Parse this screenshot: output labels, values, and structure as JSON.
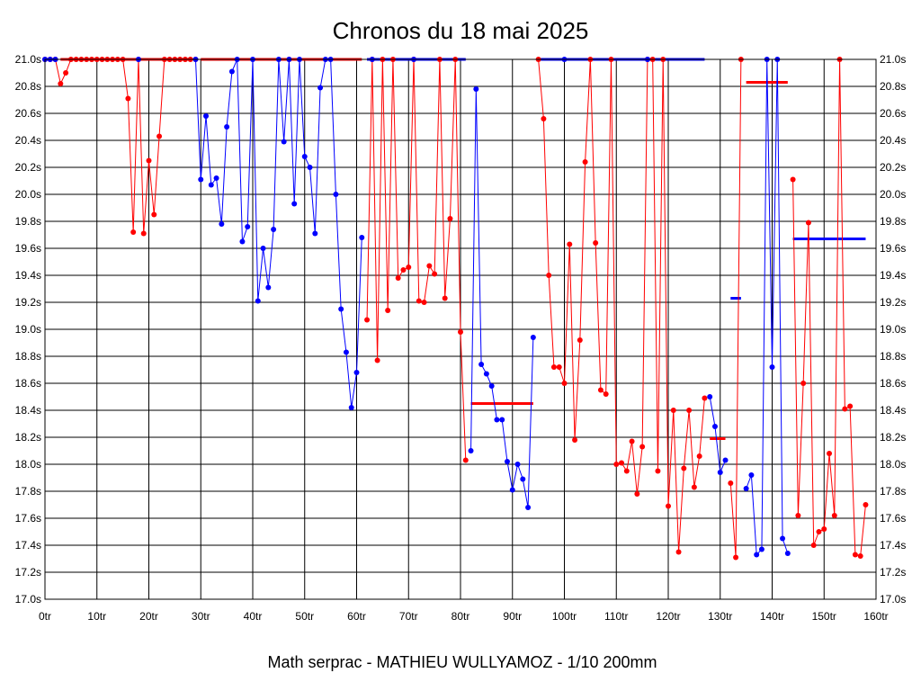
{
  "chart_data": {
    "type": "line",
    "title": "Chronos du 18 mai 2025",
    "caption": "Math serprac - MATHIEU WULLYAMOZ - 1/10 200mm",
    "xlabel": "",
    "ylabel": "",
    "xlim": [
      0,
      160
    ],
    "ylim": [
      17.0,
      21.0
    ],
    "grid": true,
    "x_ticks": [
      "0tr",
      "10tr",
      "20tr",
      "30tr",
      "40tr",
      "50tr",
      "60tr",
      "70tr",
      "80tr",
      "90tr",
      "100tr",
      "110tr",
      "120tr",
      "130tr",
      "140tr",
      "150tr",
      "160tr"
    ],
    "y_ticks": [
      "17.0s",
      "17.2s",
      "17.4s",
      "17.6s",
      "17.8s",
      "18.0s",
      "18.2s",
      "18.4s",
      "18.6s",
      "18.8s",
      "19.0s",
      "19.2s",
      "19.4s",
      "19.6s",
      "19.8s",
      "20.0s",
      "20.2s",
      "20.4s",
      "20.6s",
      "20.8s",
      "21.0s"
    ],
    "series": [
      {
        "name": "rouge",
        "color": "#ff0000",
        "marker_color": "#ff0000",
        "points": [
          [
            0,
            21.0
          ],
          [
            1,
            21.0
          ],
          [
            2,
            21.0
          ],
          [
            3,
            20.82
          ],
          [
            4,
            20.9
          ],
          [
            5,
            21.0
          ],
          [
            6,
            21.0
          ],
          [
            7,
            21.0
          ],
          [
            8,
            21.0
          ],
          [
            9,
            21.0
          ],
          [
            10,
            21.0
          ],
          [
            11,
            21.0
          ],
          [
            12,
            21.0
          ],
          [
            13,
            21.0
          ],
          [
            14,
            21.0
          ],
          [
            15,
            21.0
          ],
          [
            16,
            20.71
          ],
          [
            17,
            19.72
          ],
          [
            18,
            21.0
          ],
          [
            19,
            19.71
          ],
          [
            20,
            20.25
          ],
          [
            21,
            19.85
          ],
          [
            22,
            20.43
          ],
          [
            23,
            21.0
          ],
          [
            24,
            21.0
          ],
          [
            25,
            21.0
          ],
          [
            26,
            21.0
          ],
          [
            27,
            21.0
          ],
          [
            28,
            21.0
          ],
          [
            29,
            21.0
          ],
          [
            null,
            null
          ],
          [
            47,
            21.0
          ],
          [
            null,
            null
          ],
          [
            62,
            19.07
          ],
          [
            63,
            21.0
          ],
          [
            64,
            18.77
          ],
          [
            65,
            21.0
          ],
          [
            66,
            19.14
          ],
          [
            67,
            21.0
          ],
          [
            68,
            19.38
          ],
          [
            69,
            19.44
          ],
          [
            70,
            19.46
          ],
          [
            71,
            21.0
          ],
          [
            72,
            19.21
          ],
          [
            73,
            19.2
          ],
          [
            74,
            19.47
          ],
          [
            75,
            19.41
          ],
          [
            76,
            21.0
          ],
          [
            77,
            19.23
          ],
          [
            78,
            19.82
          ],
          [
            79,
            21.0
          ],
          [
            80,
            18.98
          ],
          [
            81,
            18.03
          ],
          [
            null,
            null
          ],
          [
            95,
            21.0
          ],
          [
            96,
            20.56
          ],
          [
            97,
            19.4
          ],
          [
            98,
            18.72
          ],
          [
            99,
            18.72
          ],
          [
            100,
            18.6
          ],
          [
            101,
            19.63
          ],
          [
            102,
            18.18
          ],
          [
            103,
            18.92
          ],
          [
            104,
            20.24
          ],
          [
            105,
            21.0
          ],
          [
            106,
            19.64
          ],
          [
            107,
            18.55
          ],
          [
            108,
            18.52
          ],
          [
            109,
            21.0
          ],
          [
            110,
            18.0
          ],
          [
            111,
            18.01
          ],
          [
            112,
            17.95
          ],
          [
            113,
            18.17
          ],
          [
            114,
            17.78
          ],
          [
            115,
            18.13
          ],
          [
            116,
            21.0
          ],
          [
            117,
            21.0
          ],
          [
            118,
            17.95
          ],
          [
            119,
            21.0
          ],
          [
            120,
            17.69
          ],
          [
            121,
            18.4
          ],
          [
            122,
            17.35
          ],
          [
            123,
            17.97
          ],
          [
            124,
            18.4
          ],
          [
            125,
            17.83
          ],
          [
            126,
            18.06
          ],
          [
            127,
            18.49
          ],
          [
            null,
            null
          ],
          [
            132,
            17.86
          ],
          [
            133,
            17.31
          ],
          [
            134,
            21.0
          ],
          [
            null,
            null
          ],
          [
            144,
            20.11
          ],
          [
            145,
            17.62
          ],
          [
            146,
            18.6
          ],
          [
            147,
            19.79
          ],
          [
            148,
            17.4
          ],
          [
            149,
            17.5
          ],
          [
            150,
            17.52
          ],
          [
            151,
            18.08
          ],
          [
            152,
            17.62
          ],
          [
            153,
            21.0
          ],
          [
            154,
            18.41
          ],
          [
            155,
            18.43
          ],
          [
            156,
            17.33
          ],
          [
            157,
            17.32
          ],
          [
            158,
            17.7
          ]
        ]
      },
      {
        "name": "bleu",
        "color": "#0000ff",
        "marker_color": "#0000ff",
        "points": [
          [
            0,
            21.0
          ],
          [
            1,
            21.0
          ],
          [
            2,
            21.0
          ],
          [
            null,
            null
          ],
          [
            18,
            21.0
          ],
          [
            null,
            null
          ],
          [
            29,
            21.0
          ],
          [
            30,
            20.11
          ],
          [
            31,
            20.58
          ],
          [
            32,
            20.07
          ],
          [
            33,
            20.12
          ],
          [
            34,
            19.78
          ],
          [
            35,
            20.5
          ],
          [
            36,
            20.91
          ],
          [
            37,
            21.0
          ],
          [
            38,
            19.65
          ],
          [
            39,
            19.76
          ],
          [
            40,
            21.0
          ],
          [
            41,
            19.21
          ],
          [
            42,
            19.6
          ],
          [
            43,
            19.31
          ],
          [
            44,
            19.74
          ],
          [
            45,
            21.0
          ],
          [
            46,
            20.39
          ],
          [
            47,
            21.0
          ],
          [
            48,
            19.93
          ],
          [
            49,
            21.0
          ],
          [
            50,
            20.28
          ],
          [
            51,
            20.2
          ],
          [
            52,
            19.71
          ],
          [
            53,
            20.79
          ],
          [
            54,
            21.0
          ],
          [
            55,
            21.0
          ],
          [
            56,
            20.0
          ],
          [
            57,
            19.15
          ],
          [
            58,
            18.83
          ],
          [
            59,
            18.42
          ],
          [
            60,
            18.68
          ],
          [
            61,
            19.68
          ],
          [
            null,
            null
          ],
          [
            63,
            21.0
          ],
          [
            null,
            null
          ],
          [
            71,
            21.0
          ],
          [
            null,
            null
          ],
          [
            82,
            18.1
          ],
          [
            83,
            20.78
          ],
          [
            84,
            18.74
          ],
          [
            85,
            18.67
          ],
          [
            86,
            18.58
          ],
          [
            87,
            18.33
          ],
          [
            88,
            18.33
          ],
          [
            89,
            18.02
          ],
          [
            90,
            17.81
          ],
          [
            91,
            18.0
          ],
          [
            92,
            17.89
          ],
          [
            93,
            17.68
          ],
          [
            94,
            18.94
          ],
          [
            null,
            null
          ],
          [
            100,
            21.0
          ],
          [
            null,
            null
          ],
          [
            116,
            21.0
          ],
          [
            null,
            null
          ],
          [
            128,
            18.5
          ],
          [
            129,
            18.28
          ],
          [
            130,
            17.94
          ],
          [
            131,
            18.03
          ],
          [
            null,
            null
          ],
          [
            135,
            17.82
          ],
          [
            136,
            17.92
          ],
          [
            137,
            17.33
          ],
          [
            138,
            17.37
          ],
          [
            139,
            21.0
          ],
          [
            140,
            18.72
          ],
          [
            141,
            21.0
          ],
          [
            142,
            17.45
          ],
          [
            143,
            17.34
          ]
        ]
      }
    ],
    "ranges": [
      {
        "color": "#0000ff",
        "x1": 0,
        "x2": 2,
        "y": 21.0
      },
      {
        "color": "#ff0000",
        "x1": 3,
        "x2": 28,
        "y": 21.0
      },
      {
        "color": "#ff0000",
        "x1": 30,
        "x2": 61,
        "y": 21.0
      },
      {
        "color": "#0000ff",
        "x1": 62,
        "x2": 81,
        "y": 21.0
      },
      {
        "color": "#ff0000",
        "x1": 82,
        "x2": 94,
        "y": 18.45
      },
      {
        "color": "#0000ff",
        "x1": 95,
        "x2": 127,
        "y": 21.0
      },
      {
        "color": "#ff0000",
        "x1": 128,
        "x2": 131,
        "y": 18.19
      },
      {
        "color": "#0000ff",
        "x1": 132,
        "x2": 134,
        "y": 19.23
      },
      {
        "color": "#ff0000",
        "x1": 135,
        "x2": 143,
        "y": 20.83
      },
      {
        "color": "#0000ff",
        "x1": 144,
        "x2": 158,
        "y": 19.67
      }
    ]
  }
}
